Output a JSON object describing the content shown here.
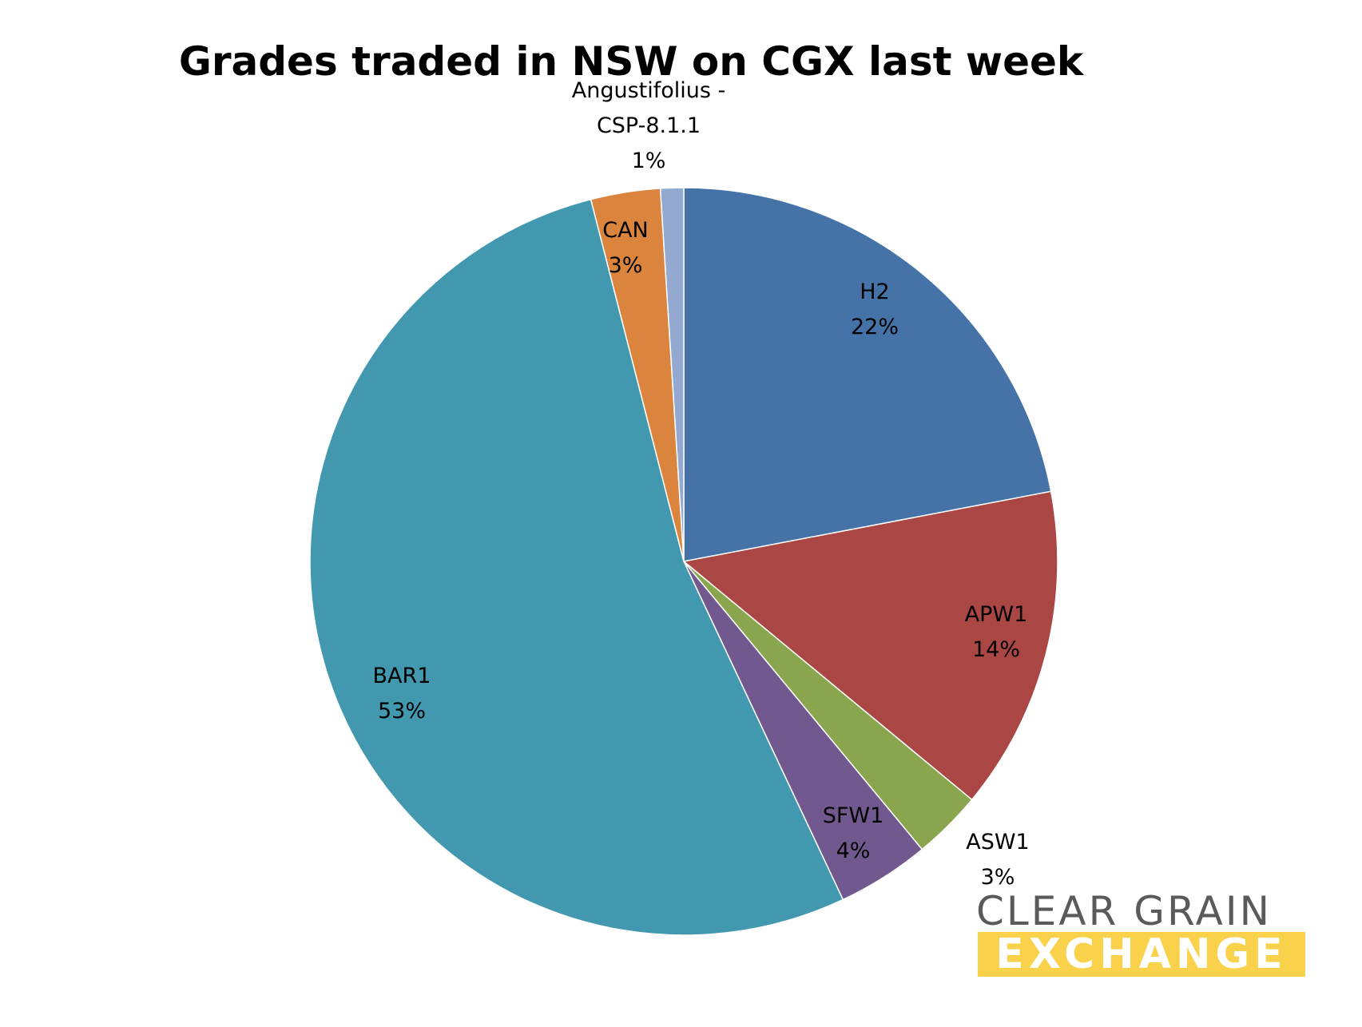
{
  "chart_data": {
    "type": "pie",
    "title": "Grades traded in NSW on CGX last week",
    "categories": [
      "H2",
      "APW1",
      "ASW1",
      "SFW1",
      "BAR1",
      "CAN",
      "Angustifolius - CSP-8.1.1"
    ],
    "values": [
      22,
      14,
      3,
      4,
      53,
      3,
      1
    ],
    "value_labels": [
      "22%",
      "14%",
      "3%",
      "4%",
      "53%",
      "3%",
      "1%"
    ],
    "colors": [
      "#4572a7",
      "#aa4643",
      "#89a54e",
      "#71588f",
      "#4198af",
      "#db843d",
      "#93a9cf"
    ]
  },
  "logo": {
    "line1": "CLEAR GRAIN",
    "line2": "EXCHANGE"
  }
}
